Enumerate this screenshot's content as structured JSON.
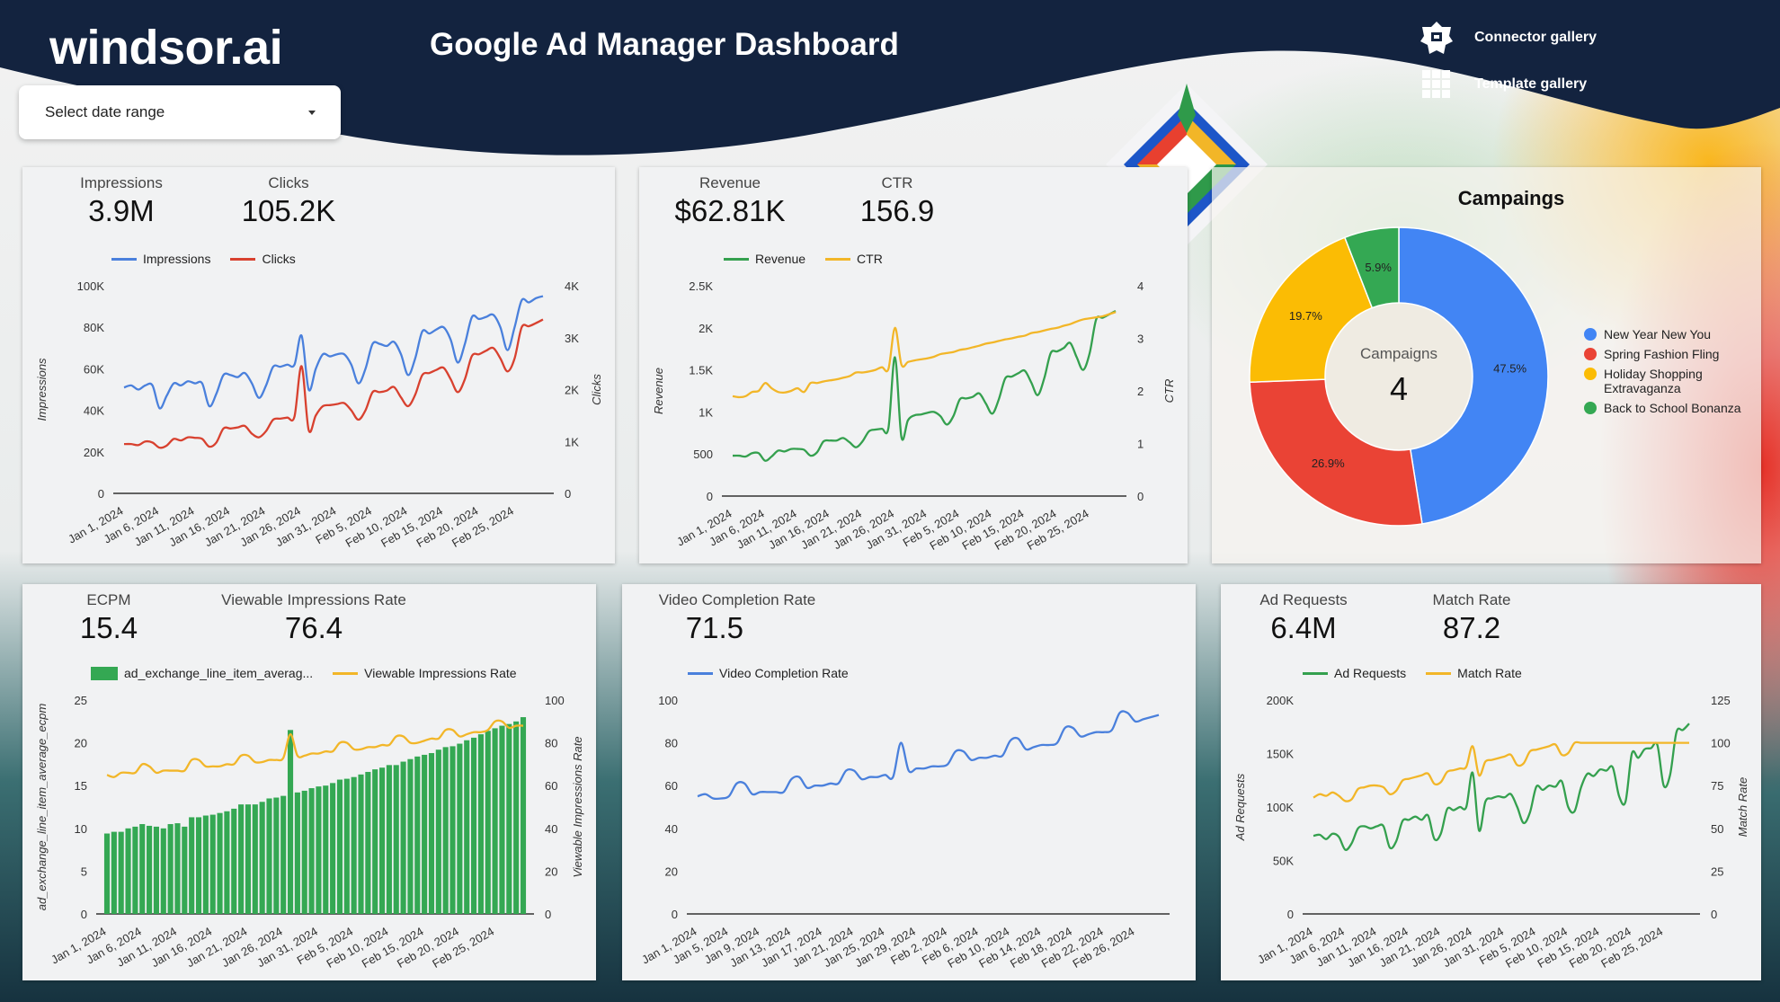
{
  "header": {
    "logo": "windsor.ai",
    "title": "Google Ad Manager Dashboard",
    "connector_gallery": "Connector gallery",
    "template_gallery": "Template gallery",
    "navy": "#13233f"
  },
  "date_range": {
    "placeholder": "Select date range"
  },
  "cards": [
    {
      "kpis": [
        {
          "label": "Impressions",
          "value": "3.9M"
        },
        {
          "label": "Clicks",
          "value": "105.2K"
        }
      ]
    },
    {
      "kpis": [
        {
          "label": "Revenue",
          "value": "$62.81K"
        },
        {
          "label": "CTR",
          "value": "156.9"
        }
      ]
    },
    {
      "kpis": []
    },
    {
      "kpis": [
        {
          "label": "ECPM",
          "value": "15.4"
        },
        {
          "label": "Viewable Impressions Rate",
          "value": "76.4"
        }
      ]
    },
    {
      "kpis": [
        {
          "label": "Video Completion Rate",
          "value": "71.5"
        }
      ]
    },
    {
      "kpis": [
        {
          "label": "Ad Requests",
          "value": "6.4M"
        },
        {
          "label": "Match Rate",
          "value": "87.2"
        }
      ]
    }
  ],
  "chart_data": [
    {
      "type": "line",
      "x_range": [
        "Jan 1, 2024",
        "Feb 29, 2024"
      ],
      "x_ticks": [
        "Jan 1, 2024",
        "Jan 6, 2024",
        "Jan 11, 2024",
        "Jan 16, 2024",
        "Jan 21, 2024",
        "Jan 26, 2024",
        "Jan 31, 2024",
        "Feb 5, 2024",
        "Feb 10, 2024",
        "Feb 15, 2024",
        "Feb 20, 2024",
        "Feb 25, 2024"
      ],
      "y_left": {
        "label": "Impressions",
        "range": [
          0,
          100000
        ],
        "ticks": [
          0,
          20000,
          40000,
          60000,
          80000,
          100000
        ],
        "tick_labels": [
          "0",
          "20K",
          "40K",
          "60K",
          "80K",
          "100K"
        ]
      },
      "y_right": {
        "label": "Clicks",
        "range": [
          0,
          4000
        ],
        "ticks": [
          0,
          1000,
          2000,
          3000,
          4000
        ],
        "tick_labels": [
          "0",
          "1K",
          "2K",
          "3K",
          "4K"
        ]
      },
      "legend": "top",
      "series": [
        {
          "name": "Impressions",
          "axis": "left",
          "color": "#4a80dc",
          "values": [
            51000,
            52000,
            50000,
            52000,
            52000,
            41000,
            47000,
            53000,
            52000,
            54000,
            53000,
            53000,
            42000,
            48000,
            57000,
            57000,
            56000,
            58000,
            53000,
            46000,
            52000,
            61000,
            61000,
            62000,
            62000,
            76000,
            50000,
            60000,
            67000,
            66000,
            67000,
            67000,
            62000,
            53000,
            60000,
            72000,
            72000,
            71000,
            73000,
            67000,
            57000,
            65000,
            78000,
            77000,
            79000,
            80000,
            74000,
            63000,
            72000,
            85000,
            84000,
            85000,
            86000,
            80000,
            69000,
            80000,
            93000,
            92000,
            94000,
            95000
          ]
        },
        {
          "name": "Clicks",
          "axis": "right",
          "color": "#d8412f",
          "values": [
            950,
            950,
            930,
            1000,
            980,
            880,
            920,
            1050,
            1020,
            1080,
            1070,
            1050,
            900,
            980,
            1250,
            1250,
            1270,
            1300,
            1150,
            1080,
            1200,
            1420,
            1440,
            1460,
            1480,
            2450,
            1220,
            1500,
            1680,
            1700,
            1720,
            1740,
            1600,
            1420,
            1600,
            1950,
            1950,
            1980,
            2050,
            1850,
            1680,
            1900,
            2280,
            2320,
            2380,
            2420,
            2200,
            1950,
            2200,
            2650,
            2680,
            2750,
            2800,
            2600,
            2350,
            2600,
            3200,
            3220,
            3280,
            3350
          ]
        }
      ]
    },
    {
      "type": "line",
      "x_range": [
        "Jan 1, 2024",
        "Feb 29, 2024"
      ],
      "x_ticks": [
        "Jan 1, 2024",
        "Jan 6, 2024",
        "Jan 11, 2024",
        "Jan 16, 2024",
        "Jan 21, 2024",
        "Jan 26, 2024",
        "Jan 31, 2024",
        "Feb 5, 2024",
        "Feb 10, 2024",
        "Feb 15, 2024",
        "Feb 20, 2024",
        "Feb 25, 2024"
      ],
      "y_left": {
        "label": "Revenue",
        "range": [
          0,
          2500
        ],
        "ticks": [
          0,
          500,
          1000,
          1500,
          2000,
          2500
        ],
        "tick_labels": [
          "0",
          "500",
          "1K",
          "1.5K",
          "2K",
          "2.5K"
        ]
      },
      "y_right": {
        "label": "CTR",
        "range": [
          0,
          4
        ],
        "ticks": [
          0,
          1,
          2,
          3,
          4
        ],
        "tick_labels": [
          "0",
          "1",
          "2",
          "3",
          "4"
        ]
      },
      "legend": "top",
      "series": [
        {
          "name": "Revenue",
          "axis": "left",
          "color": "#34a04e",
          "values": [
            480,
            480,
            470,
            510,
            510,
            420,
            470,
            540,
            530,
            560,
            560,
            550,
            480,
            520,
            650,
            660,
            660,
            690,
            640,
            580,
            650,
            770,
            790,
            800,
            810,
            1650,
            700,
            900,
            960,
            970,
            990,
            1000,
            950,
            850,
            950,
            1150,
            1160,
            1180,
            1220,
            1100,
            980,
            1150,
            1400,
            1420,
            1460,
            1490,
            1350,
            1200,
            1400,
            1700,
            1720,
            1760,
            1820,
            1650,
            1500,
            1700,
            2100,
            2120,
            2160,
            2200
          ]
        },
        {
          "name": "CTR",
          "axis": "right",
          "color": "#f2b628",
          "values": [
            1.9,
            1.88,
            1.9,
            1.98,
            2.0,
            2.15,
            2.05,
            1.98,
            1.97,
            2.0,
            2.05,
            1.98,
            2.15,
            2.15,
            2.18,
            2.2,
            2.22,
            2.25,
            2.28,
            2.35,
            2.35,
            2.37,
            2.4,
            2.45,
            2.42,
            3.2,
            2.5,
            2.55,
            2.58,
            2.6,
            2.62,
            2.65,
            2.7,
            2.72,
            2.74,
            2.78,
            2.8,
            2.83,
            2.86,
            2.9,
            2.92,
            2.95,
            2.98,
            3.0,
            3.03,
            3.05,
            3.1,
            3.12,
            3.15,
            3.18,
            3.2,
            3.24,
            3.27,
            3.32,
            3.36,
            3.38,
            3.4,
            3.42,
            3.46,
            3.5
          ]
        }
      ]
    },
    {
      "type": "pie",
      "title": "Campaings",
      "center_label": "Campaigns",
      "center_value": "4",
      "legend": "right",
      "slices": [
        {
          "name": "New Year New You",
          "value": 47.5,
          "label": "47.5%",
          "color": "#4285f4"
        },
        {
          "name": "Spring Fashion Fling",
          "value": 26.9,
          "label": "26.9%",
          "color": "#ea4335"
        },
        {
          "name": "Holiday Shopping Extravaganza",
          "value": 19.7,
          "label": "19.7%",
          "color": "#fbbc04"
        },
        {
          "name": "Back to School Bonanza",
          "value": 5.9,
          "label": "5.9%",
          "color": "#34a853"
        }
      ]
    },
    {
      "type": "bar",
      "x_range": [
        "Jan 1, 2024",
        "Feb 29, 2024"
      ],
      "x_ticks": [
        "Jan 1, 2024",
        "Jan 6, 2024",
        "Jan 11, 2024",
        "Jan 16, 2024",
        "Jan 21, 2024",
        "Jan 26, 2024",
        "Jan 31, 2024",
        "Feb 5, 2024",
        "Feb 10, 2024",
        "Feb 15, 2024",
        "Feb 20, 2024",
        "Feb 25, 2024"
      ],
      "y_left": {
        "label": "ad_exchange_line_item_average_ecpm",
        "range": [
          0,
          25
        ],
        "ticks": [
          0,
          5,
          10,
          15,
          20,
          25
        ],
        "tick_labels": [
          "0",
          "5",
          "10",
          "15",
          "20",
          "25"
        ]
      },
      "y_right": {
        "label": "Viewable Impressions Rate",
        "range": [
          0,
          100
        ],
        "ticks": [
          0,
          20,
          40,
          60,
          80,
          100
        ],
        "tick_labels": [
          "0",
          "20",
          "40",
          "60",
          "80",
          "100"
        ]
      },
      "legend": "top",
      "series": [
        {
          "name": "ad_exchange_line_item_averag...",
          "kind": "bar",
          "axis": "left",
          "color": "#34a853",
          "values": [
            9.4,
            9.6,
            9.6,
            10.0,
            10.2,
            10.5,
            10.3,
            10.2,
            10.0,
            10.5,
            10.6,
            10.2,
            11.3,
            11.3,
            11.5,
            11.6,
            11.8,
            12.0,
            12.3,
            12.8,
            12.8,
            12.8,
            13.1,
            13.5,
            13.6,
            13.8,
            21.5,
            14.2,
            14.4,
            14.7,
            14.9,
            15.0,
            15.3,
            15.7,
            15.8,
            16.0,
            16.3,
            16.6,
            16.9,
            17.1,
            17.4,
            17.4,
            17.8,
            18.1,
            18.4,
            18.6,
            18.8,
            19.2,
            19.5,
            19.6,
            19.9,
            20.3,
            20.6,
            21.0,
            21.4,
            21.7,
            22.0,
            22.2,
            22.5,
            23.0
          ]
        },
        {
          "name": "Viewable Impressions Rate",
          "kind": "line",
          "axis": "right",
          "color": "#f2b628",
          "values": [
            65,
            64,
            66,
            66,
            66,
            70,
            69,
            66,
            67,
            67,
            67,
            67,
            72,
            72,
            69,
            69,
            69,
            70,
            70,
            74,
            74,
            71,
            71,
            72,
            72,
            73,
            84,
            74,
            74,
            75,
            75,
            76,
            76,
            80,
            80,
            77,
            77,
            78,
            78,
            79,
            79,
            83,
            83,
            80,
            80,
            81,
            82,
            82,
            86,
            86,
            83,
            84,
            85,
            85,
            86,
            90,
            90,
            87,
            88,
            88
          ]
        }
      ]
    },
    {
      "type": "line",
      "x_range": [
        "Jan 1, 2024",
        "Feb 29, 2024"
      ],
      "x_ticks": [
        "Jan 1, 2024",
        "Jan 5, 2024",
        "Jan 9, 2024",
        "Jan 13, 2024",
        "Jan 17, 2024",
        "Jan 21, 2024",
        "Jan 25, 2024",
        "Jan 29, 2024",
        "Feb 2, 2024",
        "Feb 6, 2024",
        "Feb 10, 2024",
        "Feb 14, 2024",
        "Feb 18, 2024",
        "Feb 22, 2024",
        "Feb 26, 2024"
      ],
      "y_left": {
        "label": "",
        "range": [
          0,
          100
        ],
        "ticks": [
          0,
          20,
          40,
          60,
          80,
          100
        ],
        "tick_labels": [
          "0",
          "20",
          "40",
          "60",
          "80",
          "100"
        ]
      },
      "legend": "top",
      "series": [
        {
          "name": "Video Completion Rate",
          "axis": "left",
          "color": "#4a80dc",
          "values": [
            55,
            56,
            54,
            54,
            55,
            61,
            61,
            56,
            57,
            57,
            57,
            57,
            63,
            64,
            59,
            60,
            60,
            61,
            61,
            67,
            67,
            63,
            64,
            64,
            65,
            64,
            80,
            67,
            68,
            68,
            69,
            69,
            70,
            76,
            76,
            72,
            73,
            73,
            74,
            74,
            81,
            82,
            77,
            78,
            79,
            79,
            80,
            87,
            87,
            83,
            84,
            85,
            85,
            86,
            94,
            94,
            90,
            91,
            92,
            93
          ]
        }
      ]
    },
    {
      "type": "line",
      "x_range": [
        "Jan 1, 2024",
        "Feb 29, 2024"
      ],
      "x_ticks": [
        "Jan 1, 2024",
        "Jan 6, 2024",
        "Jan 11, 2024",
        "Jan 16, 2024",
        "Jan 21, 2024",
        "Jan 26, 2024",
        "Jan 31, 2024",
        "Feb 5, 2024",
        "Feb 10, 2024",
        "Feb 15, 2024",
        "Feb 20, 2024",
        "Feb 25, 2024"
      ],
      "y_left": {
        "label": "Ad Requests",
        "range": [
          0,
          200000
        ],
        "ticks": [
          0,
          50000,
          100000,
          150000,
          200000
        ],
        "tick_labels": [
          "0",
          "50K",
          "100K",
          "150K",
          "200K"
        ]
      },
      "y_right": {
        "label": "Match Rate",
        "range": [
          0,
          125
        ],
        "ticks": [
          0,
          25,
          50,
          75,
          100,
          125
        ],
        "tick_labels": [
          "0",
          "25",
          "50",
          "75",
          "100",
          "125"
        ]
      },
      "legend": "top",
      "series": [
        {
          "name": "Ad Requests",
          "axis": "left",
          "color": "#34a04e",
          "values": [
            73000,
            74000,
            70000,
            75000,
            72000,
            60000,
            66000,
            80000,
            82000,
            80000,
            82000,
            82000,
            62000,
            68000,
            87000,
            88000,
            91000,
            88000,
            92000,
            70000,
            75000,
            98000,
            97000,
            100000,
            100000,
            132000,
            78000,
            105000,
            108000,
            110000,
            109000,
            112000,
            100000,
            85000,
            95000,
            119000,
            116000,
            120000,
            119000,
            124000,
            100000,
            96000,
            118000,
            131000,
            129000,
            135000,
            134000,
            137000,
            110000,
            105000,
            150000,
            146000,
            154000,
            155000,
            158000,
            120000,
            130000,
            170000,
            172000,
            178000
          ]
        },
        {
          "name": "Match Rate",
          "axis": "right",
          "color": "#f2b628",
          "values": [
            68,
            70,
            69,
            71,
            69,
            66,
            67,
            73,
            74,
            75,
            75,
            74,
            70,
            72,
            78,
            79,
            80,
            81,
            82,
            76,
            77,
            83,
            84,
            85,
            86,
            98,
            81,
            89,
            90,
            91,
            92,
            93,
            87,
            88,
            95,
            96,
            97,
            98,
            99,
            93,
            94,
            100,
            100,
            100,
            100,
            100,
            100,
            100,
            100,
            100,
            100,
            100,
            100,
            100,
            100,
            100,
            100,
            100,
            100,
            100
          ]
        }
      ]
    }
  ]
}
